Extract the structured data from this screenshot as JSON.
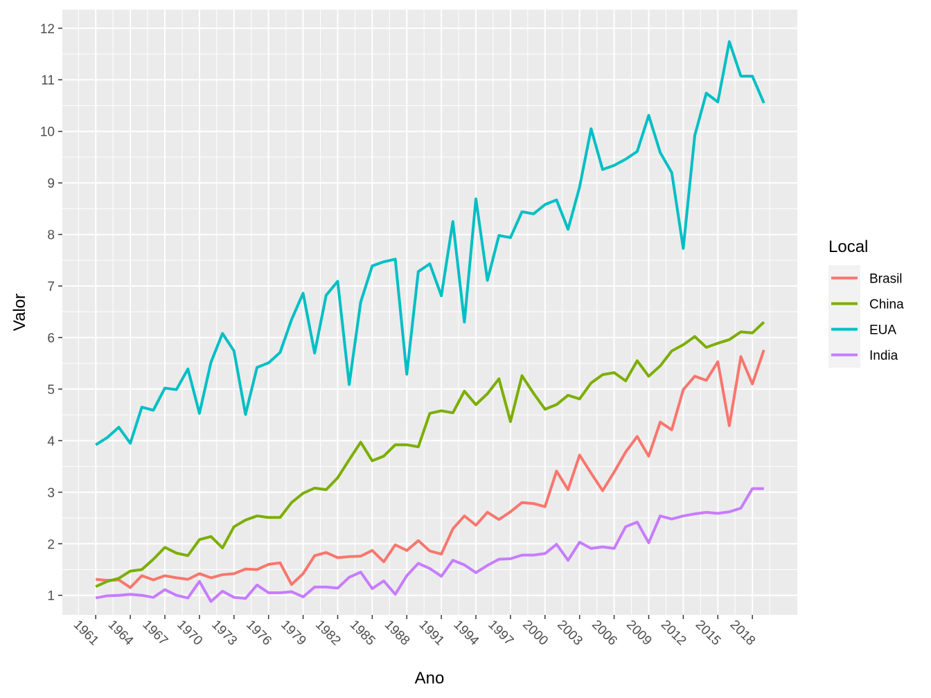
{
  "chart_data": {
    "type": "line",
    "xlabel": "Ano",
    "ylabel": "Valor",
    "legend_title": "Local",
    "legend_position": "right",
    "grid": true,
    "xlim": [
      1958.1,
      2021.9
    ],
    "ylim": [
      0.62,
      12.36
    ],
    "x_ticks": [
      1961,
      1964,
      1967,
      1970,
      1973,
      1976,
      1979,
      1982,
      1985,
      1988,
      1991,
      1994,
      1997,
      2000,
      2003,
      2006,
      2009,
      2012,
      2015,
      2018
    ],
    "y_ticks": [
      1,
      2,
      3,
      4,
      5,
      6,
      7,
      8,
      9,
      10,
      11,
      12
    ],
    "x": [
      1961,
      1962,
      1963,
      1964,
      1965,
      1966,
      1967,
      1968,
      1969,
      1970,
      1971,
      1972,
      1973,
      1974,
      1975,
      1976,
      1977,
      1978,
      1979,
      1980,
      1981,
      1982,
      1983,
      1984,
      1985,
      1986,
      1987,
      1988,
      1989,
      1990,
      1991,
      1992,
      1993,
      1994,
      1995,
      1996,
      1997,
      1998,
      1999,
      2000,
      2001,
      2002,
      2003,
      2004,
      2005,
      2006,
      2007,
      2008,
      2009,
      2010,
      2011,
      2012,
      2013,
      2014,
      2015,
      2016,
      2017,
      2018,
      2019
    ],
    "series": [
      {
        "name": "Brasil",
        "color": "#F8766D",
        "values": [
          1.31,
          1.29,
          1.3,
          1.15,
          1.38,
          1.3,
          1.38,
          1.34,
          1.31,
          1.42,
          1.34,
          1.4,
          1.42,
          1.51,
          1.5,
          1.6,
          1.63,
          1.21,
          1.42,
          1.77,
          1.83,
          1.73,
          1.75,
          1.76,
          1.87,
          1.65,
          1.98,
          1.87,
          2.06,
          1.86,
          1.8,
          2.29,
          2.54,
          2.36,
          2.61,
          2.47,
          2.62,
          2.8,
          2.78,
          2.72,
          3.41,
          3.05,
          3.72,
          3.37,
          3.03,
          3.39,
          3.78,
          4.08,
          3.7,
          4.36,
          4.21,
          4.99,
          5.25,
          5.17,
          5.53,
          4.29,
          5.63,
          5.1,
          5.76
        ]
      },
      {
        "name": "China",
        "color": "#7CAE00",
        "values": [
          1.17,
          1.27,
          1.33,
          1.47,
          1.5,
          1.7,
          1.93,
          1.82,
          1.77,
          2.08,
          2.14,
          1.92,
          2.33,
          2.46,
          2.54,
          2.51,
          2.51,
          2.8,
          2.98,
          3.08,
          3.05,
          3.28,
          3.63,
          3.97,
          3.61,
          3.7,
          3.92,
          3.92,
          3.88,
          4.53,
          4.58,
          4.54,
          4.96,
          4.7,
          4.91,
          5.2,
          4.37,
          5.26,
          4.92,
          4.61,
          4.7,
          4.88,
          4.81,
          5.12,
          5.28,
          5.32,
          5.16,
          5.55,
          5.25,
          5.45,
          5.74,
          5.86,
          6.02,
          5.81,
          5.89,
          5.96,
          6.11,
          6.09,
          6.3
        ]
      },
      {
        "name": "EUA",
        "color": "#00BFC4",
        "values": [
          3.92,
          4.06,
          4.26,
          3.95,
          4.65,
          4.59,
          5.02,
          4.99,
          5.39,
          4.53,
          5.52,
          6.08,
          5.74,
          4.51,
          5.42,
          5.51,
          5.71,
          6.35,
          6.86,
          5.7,
          6.82,
          7.09,
          5.09,
          6.69,
          7.39,
          7.47,
          7.52,
          5.29,
          7.28,
          7.43,
          6.81,
          8.25,
          6.3,
          8.69,
          7.11,
          7.98,
          7.94,
          8.44,
          8.4,
          8.58,
          8.67,
          8.1,
          8.92,
          10.05,
          9.26,
          9.34,
          9.46,
          9.61,
          10.31,
          9.59,
          9.2,
          7.73,
          9.92,
          10.74,
          10.57,
          11.74,
          11.07,
          11.07,
          10.55
        ]
      },
      {
        "name": "India",
        "color": "#C77CFF",
        "values": [
          0.95,
          0.99,
          1.0,
          1.02,
          1.0,
          0.96,
          1.11,
          1.0,
          0.95,
          1.27,
          0.88,
          1.08,
          0.96,
          0.94,
          1.2,
          1.05,
          1.05,
          1.07,
          0.97,
          1.16,
          1.16,
          1.14,
          1.35,
          1.45,
          1.13,
          1.28,
          1.02,
          1.38,
          1.62,
          1.52,
          1.37,
          1.68,
          1.59,
          1.44,
          1.58,
          1.7,
          1.71,
          1.78,
          1.78,
          1.81,
          1.99,
          1.68,
          2.03,
          1.91,
          1.94,
          1.91,
          2.33,
          2.42,
          2.02,
          2.54,
          2.48,
          2.54,
          2.58,
          2.61,
          2.59,
          2.62,
          2.69,
          3.07,
          3.07
        ]
      }
    ]
  }
}
